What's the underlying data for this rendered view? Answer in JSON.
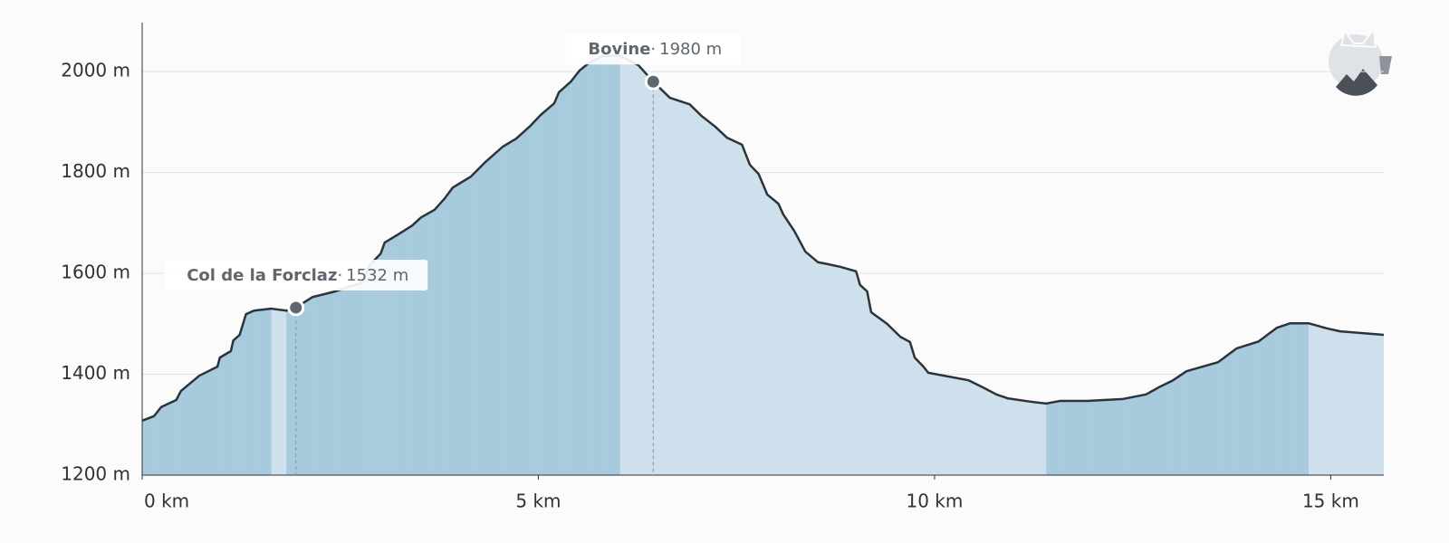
{
  "chart_data": {
    "type": "area",
    "x": [
      0,
      0.15,
      0.24,
      0.43,
      0.49,
      0.72,
      0.95,
      0.98,
      1.12,
      1.15,
      1.23,
      1.31,
      1.41,
      1.63,
      1.82,
      1.94,
      2.15,
      2.43,
      2.78,
      2.87,
      3.01,
      3.06,
      3.23,
      3.41,
      3.52,
      3.69,
      3.81,
      3.92,
      4.15,
      4.32,
      4.55,
      4.72,
      4.89,
      5.03,
      5.2,
      5.26,
      5.41,
      5.52,
      5.63,
      5.81,
      6.03,
      6.26,
      6.45,
      6.66,
      6.91,
      7.06,
      7.23,
      7.38,
      7.57,
      7.67,
      7.78,
      7.89,
      8.03,
      8.09,
      8.23,
      8.37,
      8.53,
      8.66,
      8.81,
      9.01,
      9.06,
      9.15,
      9.2,
      9.4,
      9.57,
      9.69,
      9.75,
      9.86,
      9.92,
      10.43,
      10.61,
      10.78,
      10.93,
      11.24,
      11.41,
      11.58,
      11.93,
      12.38,
      12.67,
      12.83,
      13.01,
      13.18,
      13.58,
      13.81,
      14.09,
      14.32,
      14.49,
      14.72,
      14.95,
      15.12,
      15.67
    ],
    "series": [
      {
        "color": "#2d3339",
        "values": [
          1308,
          1317,
          1335,
          1349,
          1367,
          1397,
          1415,
          1433,
          1446,
          1467,
          1478,
          1519,
          1526,
          1530,
          1526,
          1532,
          1553,
          1564,
          1582,
          1616,
          1639,
          1661,
          1677,
          1695,
          1711,
          1726,
          1747,
          1770,
          1792,
          1819,
          1851,
          1867,
          1891,
          1914,
          1937,
          1959,
          1980,
          2002,
          2016,
          2031,
          2031,
          2013,
          1980,
          1948,
          1935,
          1912,
          1891,
          1869,
          1855,
          1815,
          1797,
          1756,
          1738,
          1717,
          1684,
          1643,
          1622,
          1618,
          1613,
          1604,
          1577,
          1564,
          1523,
          1500,
          1474,
          1464,
          1433,
          1415,
          1403,
          1388,
          1374,
          1360,
          1352,
          1345,
          1342,
          1347,
          1347,
          1351,
          1360,
          1374,
          1388,
          1406,
          1424,
          1451,
          1465,
          1492,
          1501,
          1501,
          1491,
          1485,
          1478
        ]
      }
    ],
    "uphill_color": "#a8cadd",
    "downhill_color": "#cde0eb",
    "xlim": [
      0,
      15.67
    ],
    "ylim": [
      1200,
      2097
    ],
    "xticks": [
      {
        "value": 0,
        "label": "0 km"
      },
      {
        "value": 5,
        "label": "5 km"
      },
      {
        "value": 10,
        "label": "10 km"
      },
      {
        "value": 15,
        "label": "15 km"
      }
    ],
    "yticks": [
      {
        "value": 1200,
        "label": "1200 m"
      },
      {
        "value": 1400,
        "label": "1400 m"
      },
      {
        "value": 1600,
        "label": "1600 m"
      },
      {
        "value": 1800,
        "label": "1800 m"
      },
      {
        "value": 2000,
        "label": "2000 m"
      }
    ],
    "grid": true,
    "annotations": [
      {
        "name": "Col de la Forclaz",
        "separator": "·",
        "x": 1.94,
        "y": 1532,
        "value_label": "1532 m"
      },
      {
        "name": "Bovine",
        "separator": "·",
        "x": 6.45,
        "y": 1980,
        "value_label": "1980 m"
      }
    ]
  }
}
